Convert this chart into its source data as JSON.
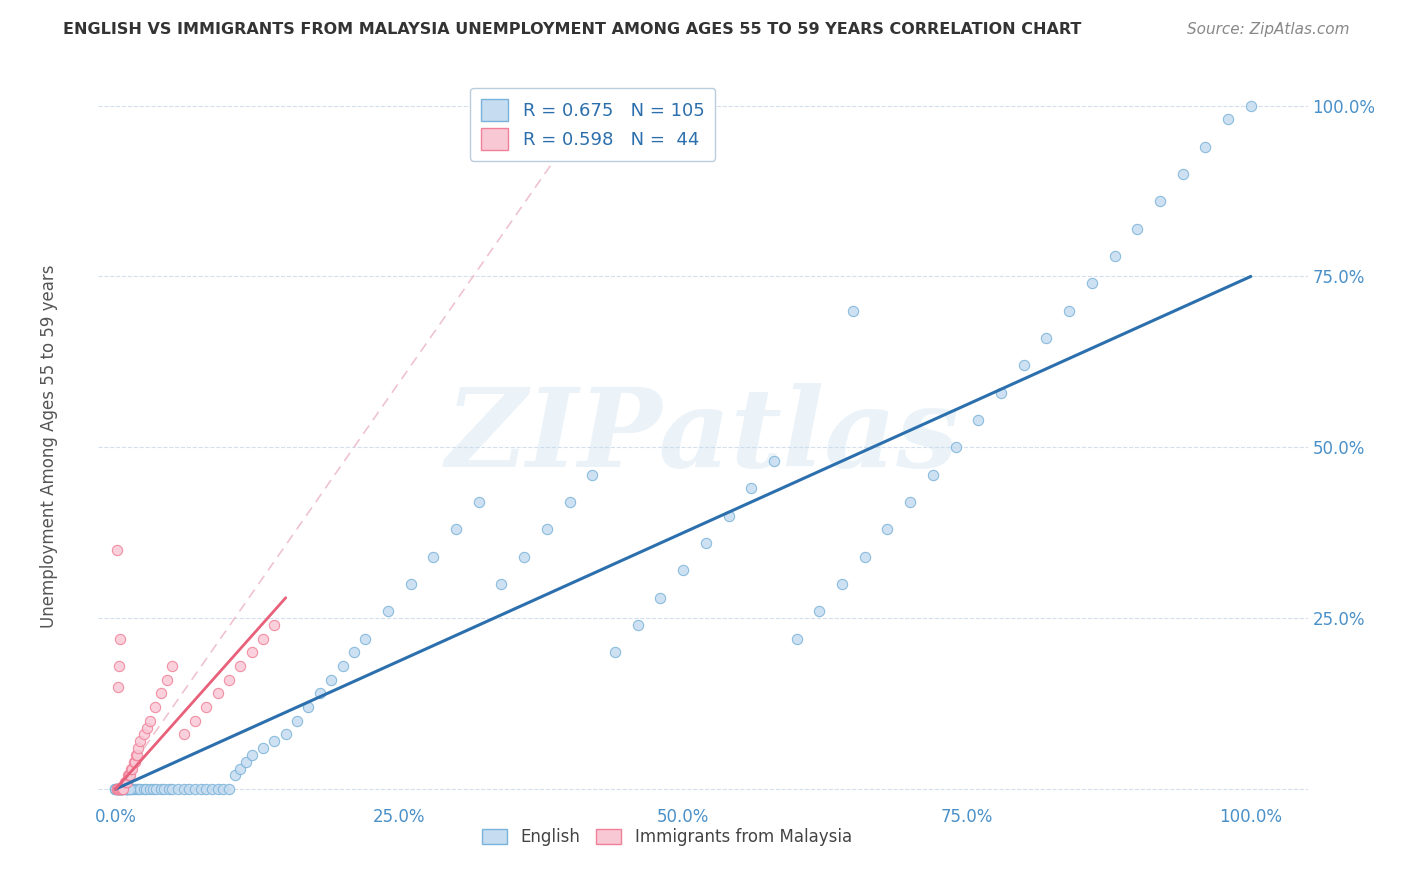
{
  "title": "ENGLISH VS IMMIGRANTS FROM MALAYSIA UNEMPLOYMENT AMONG AGES 55 TO 59 YEARS CORRELATION CHART",
  "source": "Source: ZipAtlas.com",
  "ylabel": "Unemployment Among Ages 55 to 59 years",
  "background_color": "#ffffff",
  "watermark_text": "ZIPatlas",
  "english_R": 0.675,
  "english_N": 105,
  "malaysia_R": 0.598,
  "malaysia_N": 44,
  "english_dot_face": "#c6dcf0",
  "english_dot_edge": "#7ab3d9",
  "malaysia_dot_face": "#f9c8d5",
  "malaysia_dot_edge": "#f08098",
  "english_line_color": "#2c6fad",
  "malaysia_line_color": "#e8607a",
  "diagonal_color": "#e8aabb",
  "grid_color": "#c8d8e8",
  "tick_label_color": "#4a90c8",
  "ylabel_color": "#555555",
  "title_color": "#333333",
  "source_color": "#888888",
  "legend_text_color": "#2c6fad",
  "xlim": [
    -0.015,
    1.05
  ],
  "ylim": [
    -0.02,
    1.05
  ],
  "english_x": [
    0.0,
    0.0,
    0.0,
    0.001,
    0.001,
    0.002,
    0.002,
    0.003,
    0.003,
    0.004,
    0.004,
    0.005,
    0.005,
    0.006,
    0.006,
    0.007,
    0.008,
    0.009,
    0.01,
    0.01,
    0.012,
    0.013,
    0.015,
    0.016,
    0.018,
    0.02,
    0.022,
    0.025,
    0.027,
    0.03,
    0.033,
    0.036,
    0.04,
    0.043,
    0.047,
    0.05,
    0.055,
    0.06,
    0.065,
    0.07,
    0.075,
    0.08,
    0.085,
    0.09,
    0.095,
    0.1,
    0.105,
    0.11,
    0.115,
    0.12,
    0.13,
    0.14,
    0.15,
    0.16,
    0.17,
    0.18,
    0.19,
    0.2,
    0.21,
    0.22,
    0.24,
    0.26,
    0.28,
    0.3,
    0.32,
    0.34,
    0.36,
    0.38,
    0.4,
    0.42,
    0.44,
    0.46,
    0.48,
    0.5,
    0.52,
    0.54,
    0.56,
    0.58,
    0.6,
    0.62,
    0.64,
    0.66,
    0.68,
    0.7,
    0.72,
    0.74,
    0.76,
    0.78,
    0.8,
    0.82,
    0.84,
    0.86,
    0.88,
    0.9,
    0.92,
    0.94,
    0.96,
    0.98,
    1.0,
    0.005,
    0.007,
    0.009,
    0.011,
    0.013,
    0.65
  ],
  "english_y": [
    0.0,
    0.0,
    0.0,
    0.0,
    0.0,
    0.0,
    0.0,
    0.0,
    0.0,
    0.0,
    0.0,
    0.0,
    0.0,
    0.0,
    0.0,
    0.0,
    0.0,
    0.0,
    0.0,
    0.0,
    0.0,
    0.0,
    0.0,
    0.0,
    0.0,
    0.0,
    0.0,
    0.0,
    0.0,
    0.0,
    0.0,
    0.0,
    0.0,
    0.0,
    0.0,
    0.0,
    0.0,
    0.0,
    0.0,
    0.0,
    0.0,
    0.0,
    0.0,
    0.0,
    0.0,
    0.0,
    0.02,
    0.03,
    0.04,
    0.05,
    0.06,
    0.07,
    0.08,
    0.1,
    0.12,
    0.14,
    0.16,
    0.18,
    0.2,
    0.22,
    0.26,
    0.3,
    0.34,
    0.38,
    0.42,
    0.3,
    0.34,
    0.38,
    0.42,
    0.46,
    0.2,
    0.24,
    0.28,
    0.32,
    0.36,
    0.4,
    0.44,
    0.48,
    0.22,
    0.26,
    0.3,
    0.34,
    0.38,
    0.42,
    0.46,
    0.5,
    0.54,
    0.58,
    0.62,
    0.66,
    0.7,
    0.74,
    0.78,
    0.82,
    0.86,
    0.9,
    0.94,
    0.98,
    1.0,
    0.0,
    0.0,
    0.0,
    0.0,
    0.0,
    0.7
  ],
  "malaysia_x": [
    0.001,
    0.001,
    0.001,
    0.002,
    0.002,
    0.003,
    0.004,
    0.005,
    0.006,
    0.007,
    0.008,
    0.009,
    0.01,
    0.011,
    0.012,
    0.013,
    0.014,
    0.015,
    0.016,
    0.017,
    0.018,
    0.019,
    0.02,
    0.022,
    0.025,
    0.028,
    0.03,
    0.035,
    0.04,
    0.045,
    0.05,
    0.06,
    0.07,
    0.08,
    0.09,
    0.1,
    0.11,
    0.12,
    0.13,
    0.14,
    0.002,
    0.003,
    0.004,
    0.001
  ],
  "malaysia_y": [
    0.0,
    0.0,
    0.0,
    0.0,
    0.0,
    0.0,
    0.0,
    0.0,
    0.0,
    0.0,
    0.01,
    0.01,
    0.01,
    0.02,
    0.02,
    0.02,
    0.03,
    0.03,
    0.04,
    0.04,
    0.05,
    0.05,
    0.06,
    0.07,
    0.08,
    0.09,
    0.1,
    0.12,
    0.14,
    0.16,
    0.18,
    0.08,
    0.1,
    0.12,
    0.14,
    0.16,
    0.18,
    0.2,
    0.22,
    0.24,
    0.15,
    0.18,
    0.22,
    0.35
  ]
}
